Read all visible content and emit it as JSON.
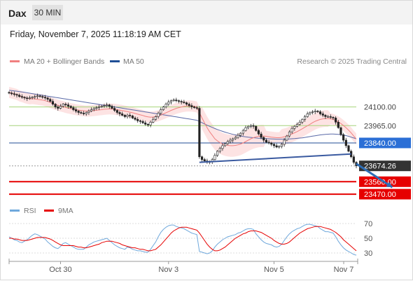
{
  "header": {
    "symbol": "Dax",
    "timeframe": "30 MIN"
  },
  "datetime": "Friday, November 7, 2025 11:18:19 AM CET",
  "legend": {
    "ma20_label": "MA 20 + Bollinger Bands",
    "ma50_label": "MA 50",
    "copyright": "Research © 2025 Trading Central",
    "rsi_label": "RSI",
    "rsi_ma_label": "9MA"
  },
  "colors": {
    "ma20": "#f08080",
    "bollinger_fill": "#fde3e3",
    "ma50": "#5a6aa8",
    "pivot_line": "#1f4e96",
    "resistance_line": "#a6d47a",
    "support_line": "#e60000",
    "current_price_box": "#333333",
    "candle": "#222222",
    "up_candle_fill": "#ffffff",
    "trendline": "#3a5aa0",
    "arrow": "#2e6db4",
    "rsi_line": "#6fa8dc",
    "rsi_ma_line": "#e60000"
  },
  "chart_data": [
    {
      "type": "candlestick",
      "x_ticks": [
        "Oct 30",
        "Nov 3",
        "Nov 5",
        "Nov 7"
      ],
      "ylim": [
        23440,
        24270
      ],
      "levels": [
        {
          "name": "resistance",
          "value": 24100.0,
          "label": "24100.00"
        },
        {
          "name": "resistance",
          "value": 23965.0,
          "label": "23965.00"
        },
        {
          "name": "pivot",
          "value": 23840.0,
          "label": "23840.00"
        },
        {
          "name": "current",
          "value": 23674.26,
          "label": "23674.26"
        },
        {
          "name": "support",
          "value": 23560.0,
          "label": "23560.00"
        },
        {
          "name": "support",
          "value": 23470.0,
          "label": "23470.00"
        }
      ],
      "closes": [
        24200,
        24195,
        24190,
        24185,
        24175,
        24170,
        24165,
        24160,
        24165,
        24170,
        24175,
        24180,
        24175,
        24170,
        24165,
        24155,
        24140,
        24120,
        24100,
        24090,
        24105,
        24120,
        24115,
        24105,
        24095,
        24080,
        24070,
        24060,
        24055,
        24050,
        24060,
        24070,
        24080,
        24090,
        24095,
        24100,
        24105,
        24110,
        24115,
        24105,
        24090,
        24075,
        24060,
        24050,
        24040,
        24030,
        24040,
        24035,
        24020,
        24010,
        24000,
        23995,
        23985,
        23975,
        23970,
        23990,
        24010,
        24030,
        24055,
        24080,
        24100,
        24120,
        24135,
        24145,
        24150,
        24145,
        24140,
        24135,
        24130,
        24120,
        24110,
        24100,
        24095,
        24090,
        23740,
        23720,
        23710,
        23700,
        23705,
        23720,
        23750,
        23780,
        23800,
        23820,
        23835,
        23850,
        23860,
        23870,
        23880,
        23895,
        23910,
        23930,
        23950,
        23960,
        23965,
        23960,
        23930,
        23905,
        23880,
        23860,
        23845,
        23840,
        23830,
        23820,
        23810,
        23815,
        23830,
        23860,
        23890,
        23920,
        23945,
        23960,
        23975,
        23990,
        24010,
        24030,
        24050,
        24060,
        24065,
        24070,
        24065,
        24050,
        24040,
        24030,
        24030,
        24025,
        24020,
        23990,
        23950,
        23900,
        23860,
        23820,
        23780,
        23740,
        23700,
        23674
      ],
      "ma20": [
        24205,
        24200,
        24195,
        24190,
        24180,
        24175,
        24168,
        24162,
        24158,
        24160,
        24158,
        24155,
        24152,
        24150,
        24145,
        24140,
        24132,
        24125,
        24118,
        24112,
        24106,
        24102,
        24096,
        24092,
        24088,
        24084,
        24080,
        24077,
        24074,
        24072,
        24070,
        24071,
        24072,
        24074,
        24076,
        24078,
        24080,
        24083,
        24085,
        24086,
        24085,
        24083,
        24080,
        24077,
        24074,
        24070,
        24066,
        24062,
        24058,
        24053,
        24048,
        24043,
        24038,
        24032,
        24028,
        24026,
        24027,
        24031,
        24036,
        24043,
        24050,
        24058,
        24066,
        24075,
        24082,
        24090,
        24095,
        24100,
        24104,
        24106,
        24107,
        24106,
        24104,
        24100,
        24060,
        24020,
        23985,
        23950,
        23920,
        23895,
        23870,
        23855,
        23842,
        23833,
        23826,
        23822,
        23820,
        23820,
        23822,
        23826,
        23832,
        23840,
        23850,
        23860,
        23870,
        23878,
        23884,
        23888,
        23890,
        23890,
        23888,
        23885,
        23882,
        23880,
        23878,
        23878,
        23880,
        23885,
        23890,
        23898,
        23905,
        23913,
        23922,
        23932,
        23942,
        23953,
        23964,
        23975,
        23986,
        23996,
        24004,
        24010,
        24014,
        24016,
        24016,
        24014,
        24010,
        24002,
        23992,
        23980,
        23966,
        23950,
        23932,
        23912,
        23890,
        23868
      ],
      "ma50": [
        24220,
        24218,
        24216,
        24214,
        24211,
        24208,
        24205,
        24202,
        24199,
        24196,
        24193,
        24190,
        24187,
        24184,
        24181,
        24178,
        24175,
        24172,
        24169,
        24166,
        24163,
        24160,
        24157,
        24154,
        24151,
        24148,
        24145,
        24142,
        24139,
        24136,
        24133,
        24130,
        24127,
        24124,
        24121,
        24118,
        24115,
        24112,
        24109,
        24106,
        24103,
        24100,
        24097,
        24094,
        24091,
        24088,
        24085,
        24082,
        24079,
        24076,
        24073,
        24070,
        24067,
        24064,
        24061,
        24058,
        24055,
        24052,
        24049,
        24046,
        24043,
        24040,
        24037,
        24034,
        24031,
        24028,
        24025,
        24022,
        24019,
        24016,
        24013,
        24010,
        24007,
        24004,
        23995,
        23986,
        23977,
        23968,
        23960,
        23952,
        23944,
        23937,
        23930,
        23924,
        23918,
        23912,
        23907,
        23902,
        23898,
        23894,
        23890,
        23887,
        23884,
        23882,
        23880,
        23878,
        23876,
        23874,
        23873,
        23872,
        23871,
        23870,
        23869,
        23868,
        23867,
        23867,
        23867,
        23867,
        23868,
        23869,
        23870,
        23871,
        23873,
        23875,
        23877,
        23880,
        23883,
        23886,
        23889,
        23892,
        23895,
        23898,
        23900,
        23902,
        23903,
        23904,
        23904,
        23903,
        23902,
        23900,
        23897,
        23893,
        23888,
        23882,
        23876,
        23870
      ],
      "trendline": [
        {
          "i": 74,
          "v": 23700
        },
        {
          "i": 133,
          "v": 23760
        }
      ],
      "projection_arrow": [
        {
          "i": 135,
          "v": 23690
        },
        {
          "i": 149,
          "v": 23520
        }
      ]
    },
    {
      "type": "line",
      "name": "RSI",
      "ylim": [
        25,
        75
      ],
      "y_ticks": [
        70,
        50,
        30
      ],
      "rsi": [
        52,
        50,
        48,
        47,
        45,
        44,
        46,
        48,
        51,
        54,
        56,
        55,
        53,
        51,
        49,
        45,
        42,
        39,
        37,
        36,
        39,
        43,
        44,
        42,
        40,
        38,
        36,
        35,
        35,
        35,
        38,
        41,
        43,
        45,
        46,
        47,
        48,
        49,
        50,
        47,
        44,
        41,
        39,
        37,
        36,
        35,
        38,
        37,
        35,
        34,
        33,
        33,
        32,
        31,
        31,
        35,
        40,
        45,
        52,
        58,
        62,
        65,
        67,
        68,
        68,
        66,
        65,
        64,
        63,
        61,
        59,
        57,
        56,
        55,
        32,
        31,
        30,
        29,
        30,
        33,
        38,
        42,
        45,
        48,
        50,
        52,
        53,
        54,
        55,
        57,
        58,
        60,
        62,
        63,
        63,
        62,
        56,
        52,
        48,
        45,
        43,
        42,
        41,
        39,
        38,
        39,
        42,
        47,
        52,
        56,
        59,
        61,
        63,
        64,
        66,
        68,
        69,
        69,
        68,
        67,
        66,
        63,
        61,
        59,
        59,
        58,
        57,
        52,
        46,
        41,
        37,
        34,
        32,
        30,
        28,
        27
      ],
      "rsi_ma": [
        50,
        50,
        49,
        49,
        48,
        47,
        47,
        47,
        48,
        49,
        50,
        51,
        51,
        51,
        51,
        50,
        49,
        47,
        45,
        43,
        41,
        40,
        40,
        40,
        40,
        40,
        39,
        38,
        38,
        37,
        37,
        38,
        39,
        40,
        41,
        42,
        44,
        45,
        46,
        46,
        46,
        45,
        44,
        43,
        41,
        40,
        39,
        38,
        37,
        37,
        36,
        35,
        35,
        34,
        33,
        33,
        34,
        35,
        38,
        41,
        45,
        49,
        53,
        57,
        60,
        62,
        64,
        65,
        65,
        65,
        64,
        63,
        62,
        61,
        57,
        52,
        47,
        42,
        38,
        35,
        33,
        33,
        34,
        36,
        38,
        41,
        44,
        47,
        50,
        52,
        54,
        56,
        57,
        59,
        60,
        60,
        60,
        59,
        58,
        56,
        54,
        52,
        50,
        47,
        45,
        43,
        42,
        42,
        43,
        45,
        48,
        51,
        54,
        57,
        59,
        61,
        63,
        64,
        65,
        66,
        66,
        66,
        65,
        64,
        63,
        62,
        60,
        58,
        55,
        52,
        48,
        45,
        42,
        39,
        36,
        33
      ]
    }
  ]
}
